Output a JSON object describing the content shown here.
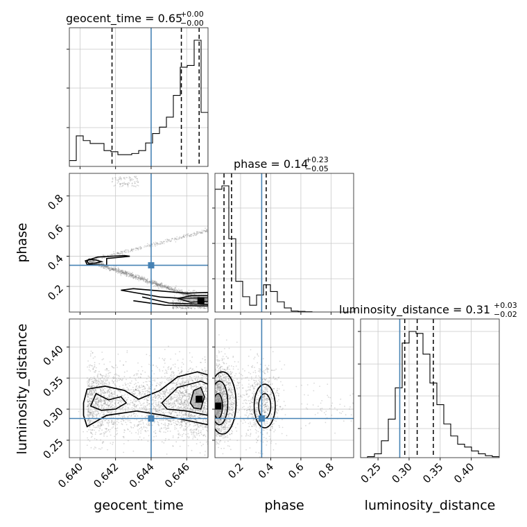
{
  "chart_data": {
    "type": "corner",
    "parameters": [
      "geocent_time",
      "phase",
      "luminosity_distance"
    ],
    "ranges": {
      "geocent_time": [
        0.6394,
        0.6472
      ],
      "phase": [
        0.03,
        0.95
      ],
      "luminosity_distance": [
        0.222,
        0.445
      ]
    },
    "truths": {
      "geocent_time": 0.644,
      "phase": 0.34,
      "luminosity_distance": 0.285
    },
    "ticks": {
      "geocent_time": [
        "0.640",
        "0.642",
        "0.644",
        "0.646"
      ],
      "phase_y": [
        "0.2",
        "0.4",
        "0.6",
        "0.8"
      ],
      "phase_x": [
        "0.2",
        "0.4",
        "0.6",
        "0.8"
      ],
      "luminosity_distance_y": [
        "0.25",
        "0.30",
        "0.35",
        "0.40"
      ],
      "luminosity_distance_x": [
        "0.25",
        "0.30",
        "0.35",
        "0.40"
      ]
    },
    "tick_values": {
      "geocent_time": [
        0.64,
        0.642,
        0.644,
        0.646
      ],
      "phase": [
        0.2,
        0.4,
        0.6,
        0.8
      ],
      "luminosity_distance": [
        0.25,
        0.3,
        0.35,
        0.4
      ]
    },
    "titles": {
      "geocent_time": {
        "main": "geocent_time = 0.65",
        "plus": "+0.00",
        "minus": "−0.00"
      },
      "phase": {
        "main": "phase = 0.14",
        "plus": "+0.23",
        "minus": "−0.05"
      },
      "luminosity_distance": {
        "main": "luminosity_distance = 0.31",
        "plus": "+0.03",
        "minus": "−0.02"
      }
    },
    "quantiles": {
      "geocent_time": [
        0.6418,
        0.6457,
        0.6467
      ],
      "phase": [
        0.09,
        0.14,
        0.37
      ],
      "luminosity_distance": [
        0.293,
        0.313,
        0.339
      ]
    },
    "histograms": {
      "geocent_time": {
        "edges": [
          0.6394,
          0.63979,
          0.64018,
          0.64057,
          0.64096,
          0.64135,
          0.64174,
          0.64213,
          0.64252,
          0.64291,
          0.6433,
          0.64369,
          0.64408,
          0.64447,
          0.64486,
          0.64525,
          0.64564,
          0.64603,
          0.64642,
          0.64681,
          0.6472
        ],
        "counts": [
          10,
          52,
          44,
          39,
          39,
          27,
          25,
          20,
          20,
          22,
          27,
          40,
          56,
          67,
          84,
          121,
          169,
          172,
          215,
          92
        ]
      },
      "phase": {
        "edges": [
          0.03,
          0.076,
          0.122,
          0.168,
          0.214,
          0.26,
          0.306,
          0.352,
          0.398,
          0.444,
          0.49,
          0.536,
          0.582,
          0.628,
          0.674,
          0.72,
          0.766,
          0.812,
          0.858,
          0.904,
          0.95
        ],
        "counts": [
          360,
          370,
          215,
          90,
          45,
          20,
          50,
          80,
          60,
          30,
          12,
          3,
          2,
          1,
          0,
          0,
          0,
          0,
          0,
          0
        ]
      },
      "luminosity_distance": {
        "edges": [
          0.222,
          0.23315,
          0.2443,
          0.25545,
          0.2666,
          0.27775,
          0.2889,
          0.30005,
          0.3112,
          0.32235,
          0.3335,
          0.34465,
          0.3558,
          0.36695,
          0.3781,
          0.38925,
          0.4004,
          0.41155,
          0.4227,
          0.43385,
          0.445
        ],
        "counts": [
          0,
          2,
          8,
          35,
          80,
          145,
          238,
          262,
          258,
          215,
          155,
          110,
          70,
          45,
          28,
          22,
          14,
          8,
          4,
          2
        ]
      }
    },
    "peaks_2d": {
      "phase_vs_geocent_time": [
        0.6468,
        0.105
      ],
      "luminosity_distance_vs_geocent_time": [
        0.6467,
        0.316
      ],
      "luminosity_distance_vs_phase": [
        0.05,
        0.305
      ]
    },
    "colors": {
      "truth": "#4682b4",
      "hist": "#000000",
      "samples": "#777777",
      "grid": "#c8c8c8"
    }
  }
}
